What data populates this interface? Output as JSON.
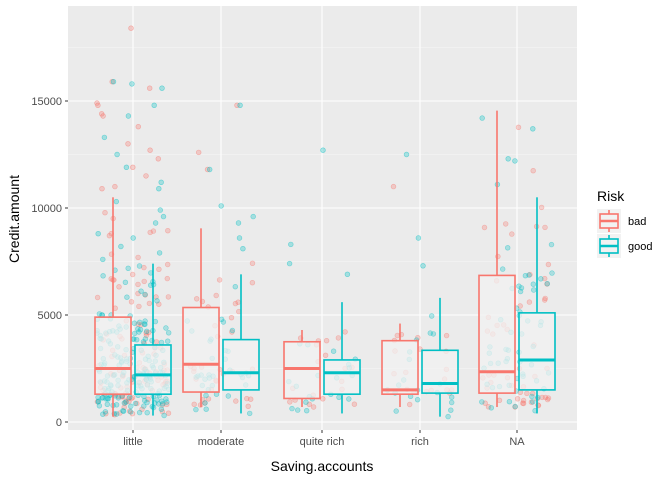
{
  "chart_data": {
    "type": "boxplot",
    "xlabel": "Saving.accounts",
    "ylabel": "Credit.amount",
    "categories": [
      "little",
      "moderate",
      "quite rich",
      "rich",
      "NA"
    ],
    "yticks": [
      0,
      5000,
      10000,
      15000
    ],
    "ytick_labels": [
      "0",
      "5000",
      "10000",
      "15000"
    ],
    "ylim": [
      -750,
      19400
    ],
    "grid": true,
    "legend": {
      "title": "Risk",
      "position": "right",
      "entries": [
        "bad",
        "good"
      ]
    },
    "colors": {
      "bad": "#F8766D",
      "good": "#00BFC4"
    },
    "series": [
      {
        "name": "bad",
        "color": "#F8766D",
        "boxes": [
          {
            "category": "little",
            "q1": 1300,
            "median": 2500,
            "q3": 4900,
            "whisker_low": 250,
            "whisker_high": 10500
          },
          {
            "category": "moderate",
            "q1": 1400,
            "median": 2700,
            "q3": 5350,
            "whisker_low": 700,
            "whisker_high": 9050
          },
          {
            "category": "quite rich",
            "q1": 1100,
            "median": 2500,
            "q3": 3750,
            "whisker_low": 700,
            "whisker_high": 4300
          },
          {
            "category": "rich",
            "q1": 1300,
            "median": 1500,
            "q3": 3800,
            "whisker_low": 700,
            "whisker_high": 4600
          },
          {
            "category": "NA",
            "q1": 1350,
            "median": 2350,
            "q3": 6850,
            "whisker_low": 700,
            "whisker_high": 14550
          }
        ],
        "outliers": [
          [
            "little",
            18400
          ],
          [
            "little",
            15900
          ],
          [
            "little",
            15600
          ],
          [
            "little",
            14900
          ],
          [
            "little",
            14800
          ],
          [
            "little",
            14400
          ],
          [
            "little",
            14300
          ],
          [
            "little",
            13800
          ],
          [
            "little",
            13000
          ],
          [
            "little",
            12700
          ],
          [
            "little",
            12300
          ],
          [
            "little",
            11900
          ],
          [
            "little",
            11500
          ],
          [
            "little",
            11000
          ],
          [
            "little",
            10900
          ],
          [
            "moderate",
            14800
          ],
          [
            "moderate",
            12600
          ],
          [
            "moderate",
            11800
          ],
          [
            "rich",
            11000
          ]
        ]
      },
      {
        "name": "good",
        "color": "#00BFC4",
        "boxes": [
          {
            "category": "little",
            "q1": 1300,
            "median": 2200,
            "q3": 3600,
            "whisker_low": 300,
            "whisker_high": 7400
          },
          {
            "category": "moderate",
            "q1": 1500,
            "median": 2300,
            "q3": 3850,
            "whisker_low": 400,
            "whisker_high": 6900
          },
          {
            "category": "quite rich",
            "q1": 1300,
            "median": 2300,
            "q3": 2900,
            "whisker_low": 400,
            "whisker_high": 5600
          },
          {
            "category": "rich",
            "q1": 1350,
            "median": 1800,
            "q3": 3350,
            "whisker_low": 250,
            "whisker_high": 5800
          },
          {
            "category": "NA",
            "q1": 1500,
            "median": 2900,
            "q3": 5100,
            "whisker_low": 400,
            "whisker_high": 10500
          }
        ],
        "outliers": [
          [
            "little",
            15900
          ],
          [
            "little",
            15800
          ],
          [
            "little",
            15600
          ],
          [
            "little",
            14800
          ],
          [
            "little",
            14300
          ],
          [
            "little",
            13300
          ],
          [
            "little",
            12500
          ],
          [
            "little",
            11900
          ],
          [
            "little",
            11200
          ],
          [
            "little",
            10900
          ],
          [
            "little",
            10300
          ],
          [
            "little",
            9900
          ],
          [
            "little",
            9600
          ],
          [
            "little",
            9300
          ],
          [
            "little",
            8800
          ],
          [
            "little",
            8600
          ],
          [
            "little",
            8200
          ],
          [
            "little",
            7900
          ],
          [
            "little",
            7600
          ],
          [
            "moderate",
            14800
          ],
          [
            "moderate",
            11800
          ],
          [
            "moderate",
            10100
          ],
          [
            "moderate",
            9600
          ],
          [
            "moderate",
            9300
          ],
          [
            "moderate",
            8600
          ],
          [
            "moderate",
            8100
          ],
          [
            "quite rich",
            12700
          ],
          [
            "quite rich",
            8300
          ],
          [
            "quite rich",
            7400
          ],
          [
            "quite rich",
            6900
          ],
          [
            "rich",
            12500
          ],
          [
            "rich",
            8600
          ],
          [
            "rich",
            7300
          ],
          [
            "NA",
            14200
          ],
          [
            "NA",
            13700
          ],
          [
            "NA",
            12300
          ],
          [
            "NA",
            12200
          ],
          [
            "NA",
            11100
          ]
        ]
      }
    ]
  }
}
